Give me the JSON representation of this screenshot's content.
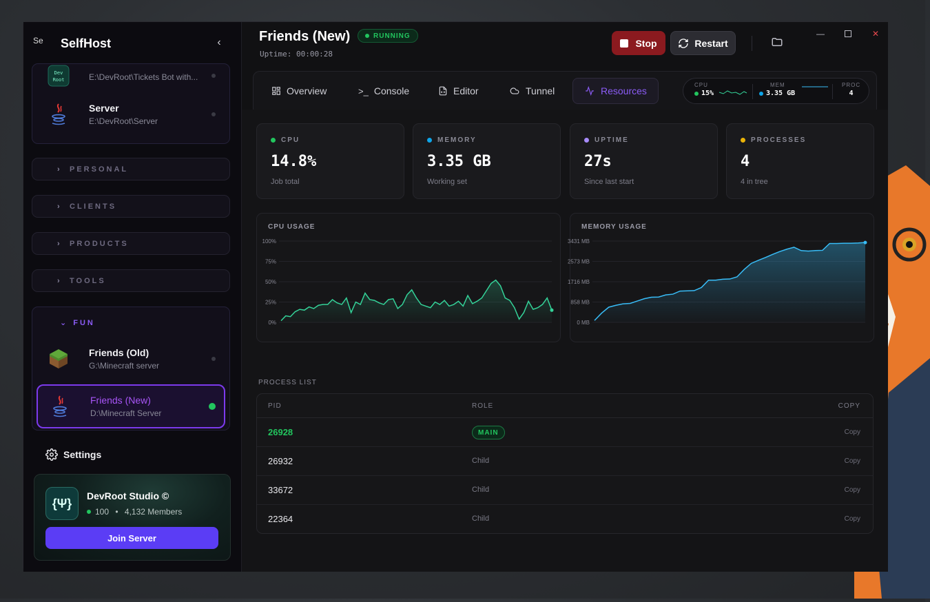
{
  "sidebar": {
    "brand_name": "SelfHost",
    "brand_logo_alt": "Se",
    "top_group_items": [
      {
        "name": "",
        "path": "E:\\DevRoot\\Tickets Bot with..."
      },
      {
        "name": "Server",
        "path": "E:\\DevRoot\\Server"
      }
    ],
    "groups": [
      {
        "label": "PERSONAL"
      },
      {
        "label": "CLIENTS"
      },
      {
        "label": "PRODUCTS"
      },
      {
        "label": "TOOLS"
      }
    ],
    "fun_group": {
      "label": "FUN",
      "items": [
        {
          "name": "Friends (Old)",
          "path": "G:\\Minecraft server"
        },
        {
          "name": "Friends (New)",
          "path": "D:\\Minecraft Server"
        }
      ]
    },
    "settings_label": "Settings",
    "community": {
      "name": "DevRoot Studio ©",
      "online": "100",
      "members": "4,132 Members",
      "join_label": "Join Server"
    }
  },
  "header": {
    "title": "Friends (New)",
    "status": "RUNNING",
    "uptime": "Uptime: 00:00:28",
    "stop_label": "Stop",
    "restart_label": "Restart"
  },
  "tabs": [
    {
      "label": "Overview"
    },
    {
      "label": "Console"
    },
    {
      "label": "Editor"
    },
    {
      "label": "Tunnel"
    },
    {
      "label": "Resources"
    }
  ],
  "mini_stats": {
    "cpu_label": "CPU",
    "cpu_value": "15%",
    "mem_label": "MEM",
    "mem_value": "3.35 GB",
    "proc_label": "PROC",
    "proc_value": "4"
  },
  "stats": [
    {
      "label": "CPU",
      "value": "14.8%",
      "sub": "Job total",
      "color": "#22c55e"
    },
    {
      "label": "MEMORY",
      "value": "3.35 GB",
      "sub": "Working set",
      "color": "#0ea5e9"
    },
    {
      "label": "UPTIME",
      "value": "27s",
      "sub": "Since last start",
      "color": "#a78bfa"
    },
    {
      "label": "PROCESSES",
      "value": "4",
      "sub": "4 in tree",
      "color": "#eab308"
    }
  ],
  "chart_data": [
    {
      "type": "area",
      "title": "CPU USAGE",
      "yticks": [
        "100%",
        "75%",
        "50%",
        "25%",
        "0%"
      ],
      "ylim": [
        0,
        100
      ],
      "color": "#34d399",
      "values": [
        2,
        8,
        7,
        13,
        16,
        15,
        19,
        17,
        21,
        22,
        22,
        28,
        24,
        22,
        30,
        12,
        25,
        22,
        36,
        28,
        27,
        24,
        22,
        28,
        29,
        17,
        22,
        34,
        40,
        30,
        22,
        20,
        18,
        25,
        22,
        27,
        20,
        22,
        26,
        20,
        33,
        23,
        26,
        30,
        39,
        48,
        52,
        45,
        30,
        27,
        18,
        4,
        12,
        26,
        16,
        18,
        22,
        30,
        15
      ]
    },
    {
      "type": "area",
      "title": "MEMORY USAGE",
      "yticks": [
        "3431 MB",
        "2573 MB",
        "1716 MB",
        "858 MB",
        "0 MB"
      ],
      "ylim": [
        0,
        3431
      ],
      "color": "#38bdf8",
      "values": [
        80,
        390,
        640,
        720,
        780,
        800,
        900,
        1000,
        1060,
        1070,
        1160,
        1190,
        1320,
        1330,
        1340,
        1470,
        1780,
        1780,
        1820,
        1830,
        1920,
        2230,
        2490,
        2620,
        2740,
        2870,
        2990,
        3090,
        3170,
        3030,
        3010,
        3030,
        3040,
        3330,
        3330,
        3340,
        3340,
        3350,
        3370
      ]
    }
  ],
  "process_list": {
    "label": "PROCESS LIST",
    "headers": {
      "pid": "PID",
      "role": "ROLE",
      "copy": "COPY"
    },
    "rows": [
      {
        "pid": "26928",
        "role": "MAIN",
        "copy": "Copy"
      },
      {
        "pid": "26932",
        "role": "Child",
        "copy": "Copy"
      },
      {
        "pid": "33672",
        "role": "Child",
        "copy": "Copy"
      },
      {
        "pid": "22364",
        "role": "Child",
        "copy": "Copy"
      }
    ]
  }
}
